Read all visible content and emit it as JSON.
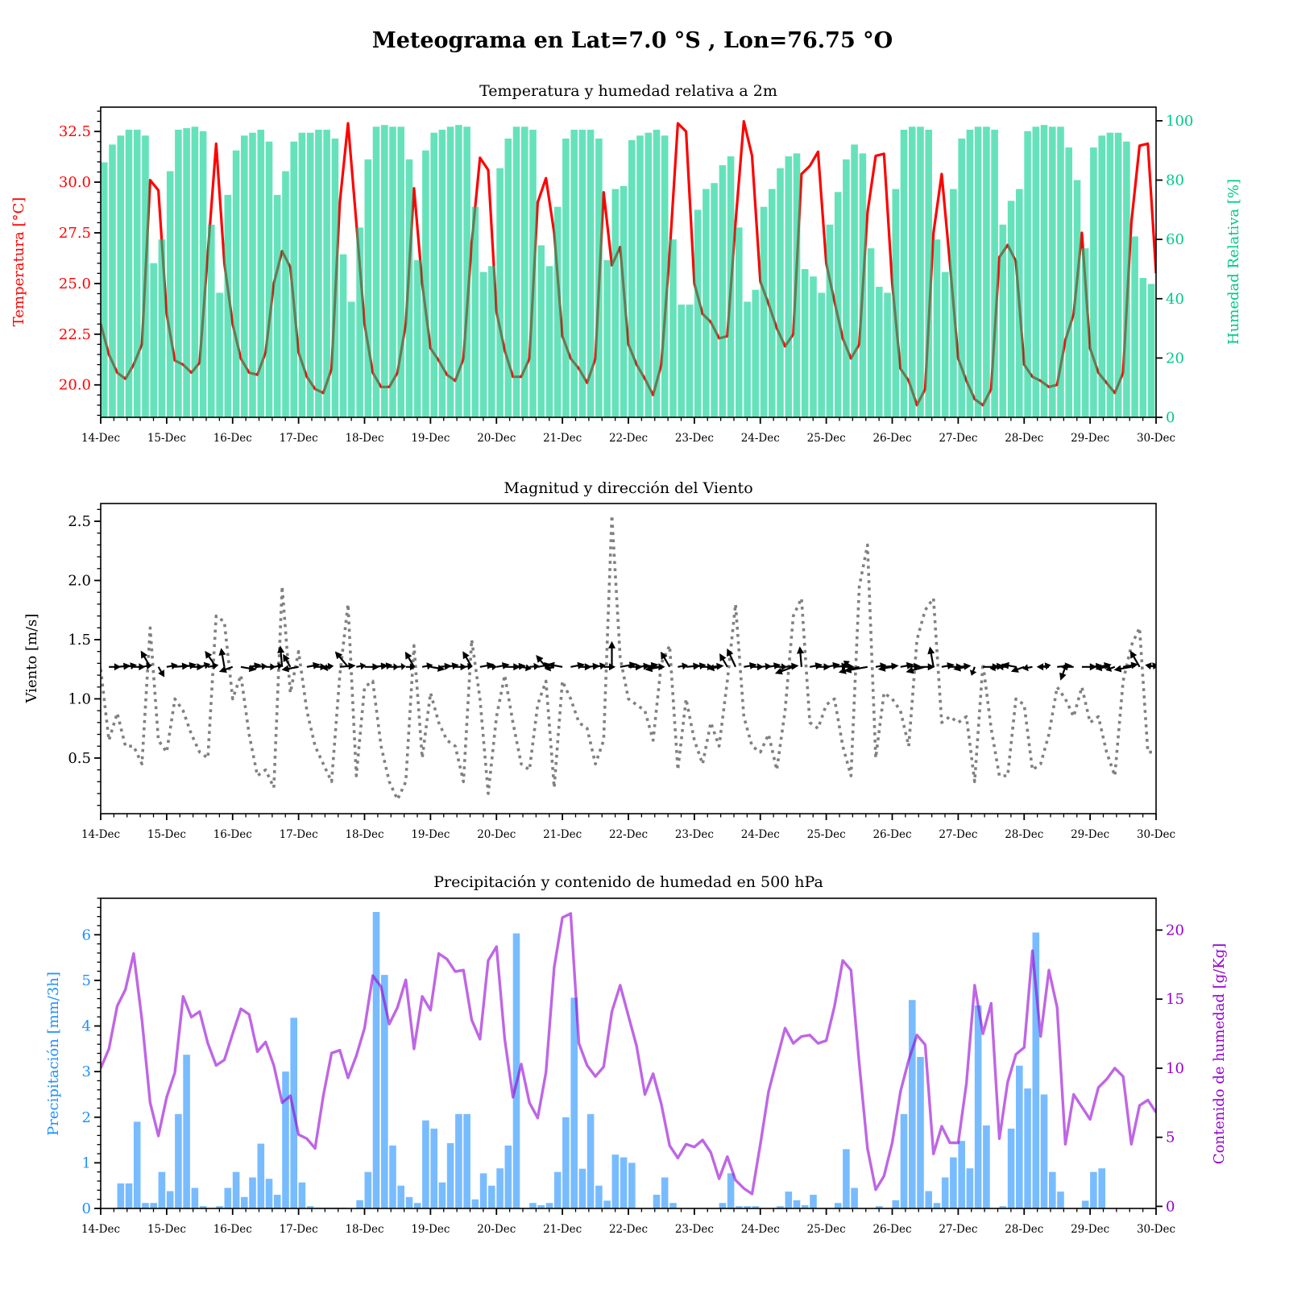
{
  "title": "Meteograma en Lat=7.0 °S , Lon=76.75 °O",
  "x_tick_labels": [
    "14-Dec",
    "15-Dec",
    "16-Dec",
    "17-Dec",
    "18-Dec",
    "19-Dec",
    "20-Dec",
    "21-Dec",
    "22-Dec",
    "23-Dec",
    "24-Dec",
    "25-Dec",
    "26-Dec",
    "27-Dec",
    "28-Dec",
    "29-Dec",
    "30-Dec"
  ],
  "chart_data": [
    {
      "type": "bar+line",
      "title": "Temperatura y humedad relativa a 2m",
      "ylabel": "Temperatura [°C]",
      "ylabel_right": "Humedad Relativa [%]",
      "xlim_days": [
        0,
        16
      ],
      "step_hours": 3,
      "ylim": [
        18.4,
        33.7
      ],
      "ylim_right": [
        0,
        104.6
      ],
      "yticks": [
        20,
        22.5,
        25,
        27.5,
        30,
        32.5
      ],
      "yticklabels": [
        "20.0",
        "22.5",
        "25.0",
        "27.5",
        "30.0",
        "32.5"
      ],
      "yticks_right": [
        0,
        20,
        40,
        60,
        80,
        100
      ],
      "yticklabels_right": [
        "0",
        "20",
        "40",
        "60",
        "80",
        "100"
      ],
      "colors": {
        "temperature": "#ff0000",
        "humidity": "#00cf8d",
        "left_axis": "#ff0000",
        "right_axis": "#00c98a"
      },
      "temperature": [
        23.0,
        21.5,
        20.6,
        20.3,
        21.0,
        22.0,
        30.1,
        29.6,
        23.5,
        21.2,
        21.0,
        20.6,
        21.1,
        26.5,
        31.9,
        26.0,
        23.0,
        21.3,
        20.6,
        20.5,
        21.6,
        25.0,
        26.6,
        25.8,
        21.6,
        20.4,
        19.8,
        19.6,
        20.8,
        29.0,
        32.9,
        28.0,
        23.0,
        20.6,
        19.9,
        19.9,
        20.6,
        23.0,
        29.7,
        25.0,
        21.8,
        21.2,
        20.5,
        20.2,
        21.3,
        27.0,
        31.2,
        30.6,
        23.6,
        21.7,
        20.4,
        20.4,
        21.3,
        29.0,
        30.2,
        27.5,
        22.4,
        21.3,
        20.8,
        20.1,
        21.3,
        29.5,
        25.9,
        26.8,
        22.0,
        21.0,
        20.3,
        19.5,
        21.0,
        26.5,
        32.9,
        32.5,
        25.0,
        23.5,
        23.1,
        22.3,
        22.4,
        28.0,
        33.0,
        31.3,
        25.1,
        24.0,
        22.8,
        21.9,
        22.5,
        30.4,
        30.8,
        31.5,
        26.0,
        24.1,
        22.3,
        21.3,
        22.0,
        28.5,
        31.3,
        31.4,
        25.0,
        20.8,
        20.2,
        19.0,
        19.8,
        27.5,
        30.4,
        26.0,
        21.3,
        20.2,
        19.3,
        19.0,
        19.8,
        26.3,
        26.9,
        26.1,
        21.0,
        20.4,
        20.2,
        19.9,
        20.0,
        22.2,
        23.5,
        27.5,
        21.8,
        20.6,
        20.1,
        19.6,
        20.6,
        28.0,
        31.8,
        31.9,
        25.5
      ],
      "relative_humidity": [
        86,
        92,
        95,
        97,
        97,
        95,
        52,
        60,
        83,
        97,
        97.5,
        98,
        96.5,
        65,
        42,
        75,
        90,
        95,
        96,
        97,
        93,
        75,
        83,
        93,
        96,
        96,
        97,
        97,
        94,
        55,
        39,
        64,
        87,
        98,
        98.6,
        98,
        98,
        87,
        53,
        90,
        96,
        97,
        98,
        98.6,
        98,
        71,
        49,
        51,
        84,
        94,
        98,
        98,
        97,
        58,
        51,
        71,
        94,
        97,
        97,
        97,
        94,
        53,
        77,
        78,
        93.5,
        95,
        96,
        97,
        95,
        60,
        38,
        38,
        70,
        77,
        79,
        85,
        88,
        64,
        39,
        43,
        71,
        77,
        84,
        88,
        89,
        50,
        47.5,
        42,
        65,
        76,
        87,
        92,
        89,
        57,
        44,
        42,
        77,
        97,
        98,
        98,
        97,
        60,
        49,
        77,
        94,
        97,
        98,
        98,
        97,
        65,
        73,
        77,
        96.5,
        98,
        98.6,
        98,
        98,
        91,
        80,
        57,
        91,
        95,
        96,
        96,
        93,
        61,
        47,
        45,
        72
      ]
    },
    {
      "type": "line+quiver",
      "title": "Magnitud y dirección del Viento",
      "ylabel": "Viento [m/s]",
      "xlim_days": [
        0,
        16
      ],
      "ylim": [
        0.03,
        2.65
      ],
      "yticks": [
        0.5,
        1.0,
        1.5,
        2.0,
        2.5
      ],
      "yticklabels": [
        "0.5",
        "1.0",
        "1.5",
        "2.0",
        "2.5"
      ],
      "quiver_level": 1.27,
      "colors": {
        "speed": "#808080",
        "arrows": "#000000"
      },
      "wind_speed": [
        1.25,
        0.65,
        0.88,
        0.6,
        0.6,
        0.45,
        1.6,
        0.65,
        0.55,
        1.0,
        0.9,
        0.7,
        0.55,
        0.5,
        1.7,
        1.65,
        1.0,
        1.2,
        0.7,
        0.35,
        0.4,
        0.25,
        1.95,
        1.05,
        1.4,
        0.9,
        0.6,
        0.45,
        0.3,
        1.2,
        1.8,
        0.35,
        1.1,
        1.15,
        0.6,
        0.3,
        0.15,
        0.3,
        1.45,
        0.5,
        1.05,
        0.8,
        0.65,
        0.6,
        0.3,
        1.5,
        1.0,
        0.2,
        0.85,
        1.2,
        0.8,
        0.45,
        0.4,
        0.95,
        1.15,
        0.25,
        1.15,
        1.0,
        0.8,
        0.75,
        0.45,
        0.65,
        2.55,
        1.35,
        1.0,
        0.95,
        0.9,
        0.65,
        1.3,
        1.45,
        0.4,
        1.0,
        0.65,
        0.45,
        0.8,
        0.6,
        1.15,
        1.8,
        0.85,
        0.6,
        0.55,
        0.7,
        0.4,
        0.9,
        1.7,
        1.85,
        0.8,
        0.75,
        0.95,
        1.0,
        0.6,
        0.35,
        1.95,
        2.3,
        0.5,
        1.05,
        1.0,
        0.9,
        0.6,
        1.5,
        1.75,
        1.85,
        0.8,
        0.85,
        0.8,
        0.85,
        0.3,
        1.3,
        0.75,
        0.35,
        0.35,
        1.0,
        0.95,
        0.4,
        0.45,
        0.7,
        1.1,
        1.0,
        0.85,
        1.1,
        0.8,
        0.85,
        0.55,
        0.35,
        1.15,
        1.45,
        1.6,
        0.55,
        0.55
      ],
      "wind_direction_deg": [
        250,
        0,
        5,
        10,
        0,
        10,
        120,
        300,
        10,
        5,
        10,
        0,
        15,
        10,
        125,
        100,
        200,
        350,
        10,
        5,
        0,
        10,
        95,
        120,
        190,
        10,
        0,
        5,
        190,
        5,
        130,
        10,
        0,
        5,
        10,
        0,
        5,
        0,
        120,
        10,
        350,
        5,
        10,
        0,
        5,
        120,
        10,
        0,
        10,
        0,
        5,
        350,
        5,
        10,
        130,
        195,
        170,
        10,
        0,
        5,
        10,
        0,
        90,
        10,
        0,
        5,
        10,
        0,
        190,
        120,
        10,
        5,
        10,
        0,
        5,
        190,
        120,
        115,
        10,
        0,
        5,
        10,
        0,
        5,
        200,
        95,
        10,
        0,
        10,
        5,
        0,
        140,
        195,
        190,
        10,
        5,
        190,
        10,
        5,
        0,
        195,
        100,
        10,
        0,
        5,
        190,
        250,
        0,
        5,
        190,
        180,
        170,
        200,
        190,
        10,
        180,
        5,
        250,
        180,
        0,
        5,
        10,
        190,
        200,
        10,
        190,
        120,
        10,
        170
      ]
    },
    {
      "type": "bar+line",
      "title": "Precipitación y contenido de humedad en 500 hPa",
      "ylabel": "Precipitación [mm/3h]",
      "ylabel_right": "Contenido de humedad [g/Kg]",
      "xlim_days": [
        0,
        16
      ],
      "ylim": [
        0,
        6.8
      ],
      "ylim_right": [
        -0.15,
        22.3
      ],
      "yticks": [
        0,
        1,
        2,
        3,
        4,
        5,
        6
      ],
      "yticklabels": [
        "0",
        "1",
        "2",
        "3",
        "4",
        "5",
        "6"
      ],
      "yticks_right": [
        0,
        5,
        10,
        15,
        20
      ],
      "yticklabels_right": [
        "0",
        "5",
        "10",
        "15",
        "20"
      ],
      "colors": {
        "precipitation": "#1e90ff",
        "moisture": "#9400d3"
      },
      "precipitation": [
        0,
        0,
        0.55,
        0.55,
        1.9,
        0.12,
        0.12,
        0.8,
        0.38,
        2.07,
        3.37,
        0.45,
        0.05,
        0,
        0.05,
        0.45,
        0.8,
        0.25,
        0.68,
        1.42,
        0.65,
        0.3,
        3.0,
        4.18,
        0.57,
        0.05,
        0.02,
        0.02,
        0.02,
        0.02,
        0,
        0.18,
        0.8,
        6.5,
        5.12,
        1.38,
        0.5,
        0.25,
        0.12,
        1.93,
        1.75,
        0.57,
        1.43,
        2.07,
        2.07,
        0.2,
        0.77,
        0.5,
        0.88,
        1.38,
        6.03,
        0,
        0.12,
        0.07,
        0.12,
        0.8,
        2.0,
        4.62,
        0.87,
        2.07,
        0.5,
        0.17,
        1.18,
        1.12,
        1.0,
        0,
        0,
        0.3,
        0.68,
        0.12,
        0,
        0,
        0,
        0,
        0,
        0.12,
        0.77,
        0.05,
        0.05,
        0.05,
        0,
        0,
        0.05,
        0.37,
        0.18,
        0.07,
        0.3,
        0,
        0,
        0.12,
        1.3,
        0.45,
        0,
        0,
        0.05,
        0,
        0.18,
        2.07,
        4.57,
        3.32,
        0.38,
        0.12,
        0.68,
        1.12,
        1.48,
        0.88,
        4.45,
        1.82,
        0,
        0.05,
        1.75,
        3.13,
        2.63,
        6.05,
        2.5,
        0.8,
        0.37,
        0,
        0,
        0.17,
        0.8,
        0.88,
        0,
        0,
        0,
        0,
        0,
        0,
        0.1
      ],
      "moisture_500hPa": [
        10.0,
        11.4,
        14.5,
        15.7,
        18.3,
        13.5,
        7.5,
        5.1,
        7.9,
        9.7,
        15.2,
        13.7,
        14.1,
        11.8,
        10.2,
        10.6,
        12.5,
        14.3,
        13.9,
        11.2,
        11.9,
        10.2,
        7.5,
        8.0,
        5.2,
        4.9,
        4.2,
        8.0,
        11.1,
        11.3,
        9.3,
        10.9,
        12.9,
        16.7,
        15.9,
        13.2,
        14.4,
        16.4,
        11.4,
        15.2,
        14.2,
        18.3,
        17.9,
        17.0,
        17.1,
        13.5,
        12.1,
        17.8,
        18.8,
        12.1,
        7.9,
        10.3,
        7.5,
        6.4,
        9.7,
        17.3,
        20.9,
        21.2,
        11.8,
        10.2,
        9.4,
        10.1,
        14.1,
        16.0,
        13.8,
        11.6,
        8.1,
        9.6,
        7.4,
        4.4,
        3.5,
        4.5,
        4.3,
        4.8,
        3.9,
        2.0,
        3.6,
        1.9,
        1.3,
        0.9,
        4.5,
        8.3,
        10.6,
        12.9,
        11.8,
        12.3,
        12.4,
        11.8,
        12.0,
        14.5,
        17.8,
        17.1,
        10.3,
        4.2,
        1.2,
        2.2,
        4.6,
        8.3,
        10.6,
        12.4,
        11.7,
        3.8,
        5.8,
        4.6,
        4.6,
        8.9,
        16.0,
        12.5,
        14.7,
        4.9,
        9.0,
        11.0,
        11.5,
        18.5,
        12.3,
        17.1,
        14.4,
        4.5,
        8.1,
        7.2,
        6.3,
        8.6,
        9.2,
        10.0,
        9.4,
        4.5,
        7.3,
        7.7,
        6.8
      ]
    }
  ]
}
